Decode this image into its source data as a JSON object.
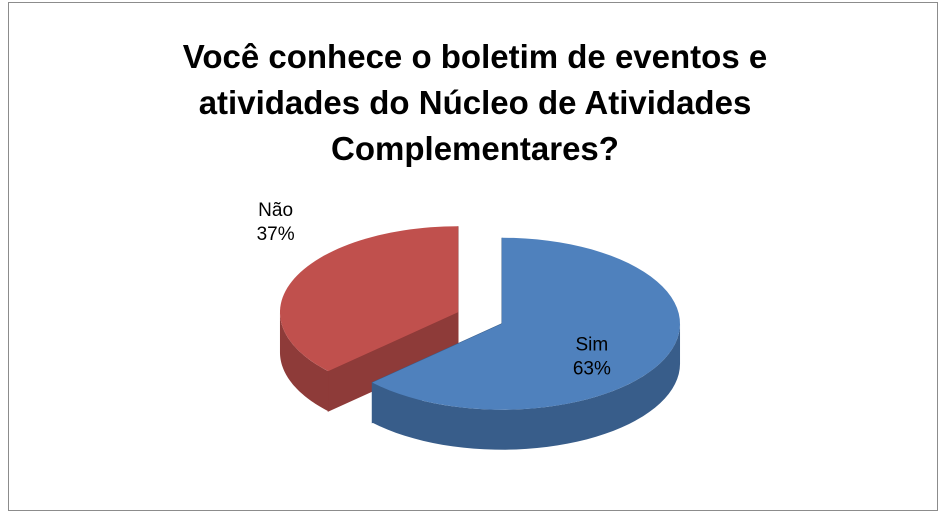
{
  "chart_data": {
    "type": "pie3d",
    "title": "Você conhece o boletim de eventos e atividades do Núcleo de Atividades Complementares?",
    "categories": [
      "Sim",
      "Não"
    ],
    "values": [
      63,
      37
    ],
    "value_labels": [
      "63%",
      "37%"
    ],
    "colors": [
      "#4f81bd",
      "#c0504d"
    ],
    "side_colors": [
      "#385d8a",
      "#8e3b39"
    ]
  }
}
